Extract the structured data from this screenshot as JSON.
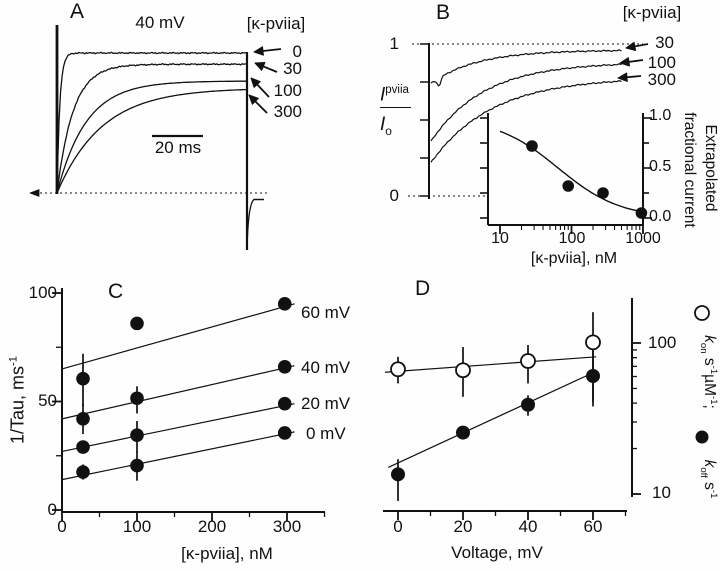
{
  "colors": {
    "ink": "#111111",
    "background": "#ffffff"
  },
  "figure": {
    "a": {
      "letter": "A",
      "voltage": "40 mV",
      "conc_header": "[κ-pviia]",
      "trace_labels": [
        "0",
        "30",
        "100",
        "300"
      ],
      "scalebar": "20 ms"
    },
    "b": {
      "letter": "B",
      "conc_header": "[κ-pviia]",
      "y_top": "1",
      "y_bottom": "0",
      "ratio_num": "I",
      "ratio_num_sup": "pviia",
      "ratio_den": "I",
      "ratio_den_sub": "o",
      "trace_labels": [
        "30",
        "100",
        "300"
      ],
      "inset": {
        "x_ticks": [
          "10",
          "100",
          "1000"
        ],
        "y_ticks": [
          "1.0",
          "0.5",
          "0.0"
        ],
        "x_label": "[κ-pviia], nM",
        "y_label_line1": "Extrapolated",
        "y_label_line2": "fractional current"
      }
    },
    "c": {
      "letter": "C",
      "y_ticks": [
        "100",
        "50",
        "0"
      ],
      "x_ticks": [
        "0",
        "100",
        "200",
        "300"
      ],
      "y_label": "1/Tau, ms",
      "y_label_sup": "-1",
      "x_label": "[κ-pviia], nM",
      "line_labels": [
        "60 mV",
        "40 mV",
        "20 mV",
        "0 mV"
      ]
    },
    "d": {
      "letter": "D",
      "x_ticks": [
        "0",
        "20",
        "40",
        "60"
      ],
      "x_label": "Voltage, mV",
      "y_ticks": [
        "100",
        "10"
      ],
      "legend": {
        "kon_k": "k",
        "kon_sub": "on",
        "kon_u1": " s",
        "kon_e1": "-1",
        "kon_u2": "µM",
        "kon_e2": "-1",
        "kon_end": ";",
        "koff_k": "k",
        "koff_sub": "off",
        "koff_u1": " s",
        "koff_e1": "-1"
      }
    }
  },
  "chart_data": [
    {
      "id": "A",
      "type": "line",
      "title": "40 mV",
      "series_header": "[κ-pviia]",
      "x_unit": "ms",
      "scale_bar_ms": 20,
      "duration_ms": 74,
      "traces": [
        {
          "label": "0",
          "plateau_rel": 1.0,
          "tau_ms": 1.1
        },
        {
          "label": "30",
          "plateau_rel": 0.92,
          "tau_ms": 6.3
        },
        {
          "label": "100",
          "plateau_rel": 0.8,
          "tau_ms": 11.4
        },
        {
          "label": "300",
          "plateau_rel": 0.75,
          "tau_ms": 17.6
        }
      ]
    },
    {
      "id": "B",
      "type": "line",
      "ylabel": "Ipviia / Io",
      "ylim": [
        0,
        1
      ],
      "traces": [
        {
          "label": "30",
          "start": 0.74,
          "plateau": 0.96,
          "tau_rel": 0.24
        },
        {
          "label": "100",
          "start": 0.36,
          "plateau": 0.88,
          "tau_rel": 0.28
        },
        {
          "label": "300",
          "start": 0.22,
          "plateau": 0.78,
          "tau_rel": 0.32
        }
      ],
      "inset": {
        "type": "scatter",
        "xlabel": "[κ-pviia], nM",
        "ylabel": "Extrapolated fractional current",
        "x_scale": "log",
        "xlim": [
          10,
          1000
        ],
        "ylim": [
          0,
          1
        ],
        "points": [
          {
            "x": 28,
            "y": 0.72
          },
          {
            "x": 90,
            "y": 0.32,
            "err": [
              0.27,
              0.37
            ]
          },
          {
            "x": 276,
            "y": 0.25
          },
          {
            "x": 950,
            "y": 0.05
          }
        ],
        "curve": {
          "ic50_nM": 65,
          "hill": 1.0
        }
      }
    },
    {
      "id": "C",
      "type": "scatter",
      "xlabel": "[κ-pviia], nM",
      "ylabel": "1/Tau, ms⁻¹",
      "xlim": [
        0,
        350
      ],
      "ylim": [
        0,
        100
      ],
      "series": [
        {
          "label": "60 mV",
          "points": [
            {
              "x": 28,
              "y": 60.5,
              "err": [
                48,
                72
              ]
            },
            {
              "x": 100,
              "y": 86
            },
            {
              "x": 297,
              "y": 95
            }
          ],
          "line": {
            "x": [
              0,
              310
            ],
            "y": [
              65,
              95
            ]
          }
        },
        {
          "label": "40 mV",
          "points": [
            {
              "x": 28,
              "y": 42,
              "err": [
                35,
                49
              ]
            },
            {
              "x": 100,
              "y": 51.5,
              "err": [
                44.5,
                57
              ]
            },
            {
              "x": 297,
              "y": 66
            }
          ],
          "line": {
            "x": [
              0,
              310
            ],
            "y": [
              42,
              66.5
            ]
          }
        },
        {
          "label": "20 mV",
          "points": [
            {
              "x": 28,
              "y": 29
            },
            {
              "x": 100,
              "y": 34.5,
              "err": [
                26.5,
                41
              ]
            },
            {
              "x": 297,
              "y": 49
            }
          ],
          "line": {
            "x": [
              0,
              310
            ],
            "y": [
              27,
              49
            ]
          }
        },
        {
          "label": "0 mV",
          "points": [
            {
              "x": 28,
              "y": 17.5,
              "err": [
                14,
                21
              ]
            },
            {
              "x": 100,
              "y": 20.5,
              "err": [
                13.5,
                27
              ]
            },
            {
              "x": 297,
              "y": 35.5
            }
          ],
          "line": {
            "x": [
              0,
              310
            ],
            "y": [
              14,
              36
            ]
          }
        }
      ]
    },
    {
      "id": "D",
      "type": "scatter",
      "xlabel": "Voltage, mV",
      "xlim": [
        -10,
        70
      ],
      "y_scale": "log",
      "ylim": [
        10,
        200
      ],
      "series": [
        {
          "label": "kon, s⁻¹µM⁻¹",
          "marker": "open",
          "points": [
            {
              "x": 0,
              "y": 67,
              "err": [
                54,
                81
              ]
            },
            {
              "x": 20,
              "y": 66,
              "err": [
                44,
                94
              ]
            },
            {
              "x": 40,
              "y": 76,
              "err": [
                54,
                97
              ]
            },
            {
              "x": 60,
              "y": 101,
              "err": [
                38,
                160
              ]
            }
          ],
          "line": {
            "x": [
              -4,
              61
            ],
            "y": [
              64,
              81
            ]
          }
        },
        {
          "label": "koff, s⁻¹",
          "marker": "filled",
          "points": [
            {
              "x": 0,
              "y": 13.5,
              "err": [
                9,
                17
              ]
            },
            {
              "x": 20,
              "y": 25.5
            },
            {
              "x": 40,
              "y": 39,
              "err": [
                33,
                45
              ]
            },
            {
              "x": 60,
              "y": 60.5,
              "err": [
                41,
                92
              ]
            }
          ],
          "line": {
            "x": [
              -3,
              61
            ],
            "y": [
              15,
              65
            ]
          }
        }
      ]
    }
  ]
}
